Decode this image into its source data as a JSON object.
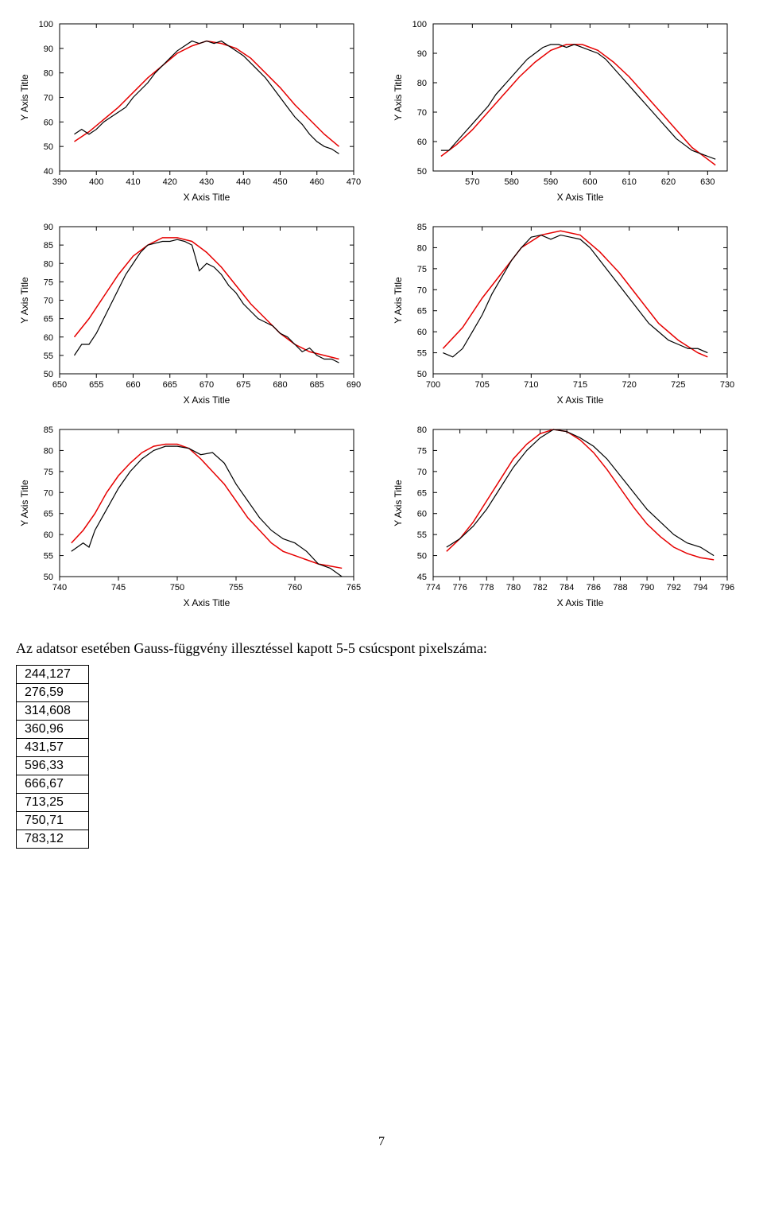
{
  "global": {
    "axis_title_x": "X Axis Title",
    "axis_title_y": "Y Axis Title",
    "data_color": "#000000",
    "fit_color": "#e60000",
    "background_color": "#ffffff",
    "axis_color": "#000000",
    "tick_fontsize": 11,
    "axis_title_fontsize": 12
  },
  "charts": [
    {
      "name": "chart-1",
      "xlim": [
        390,
        470
      ],
      "xtick_step": 10,
      "ylim": [
        40,
        100
      ],
      "ytick_step": 10,
      "data_points": [
        [
          394,
          55
        ],
        [
          396,
          57
        ],
        [
          398,
          55
        ],
        [
          400,
          57
        ],
        [
          402,
          60
        ],
        [
          404,
          62
        ],
        [
          406,
          64
        ],
        [
          408,
          66
        ],
        [
          410,
          70
        ],
        [
          412,
          73
        ],
        [
          414,
          76
        ],
        [
          416,
          80
        ],
        [
          418,
          83
        ],
        [
          420,
          86
        ],
        [
          422,
          89
        ],
        [
          424,
          91
        ],
        [
          426,
          93
        ],
        [
          428,
          92
        ],
        [
          430,
          93
        ],
        [
          432,
          92
        ],
        [
          434,
          93
        ],
        [
          436,
          91
        ],
        [
          438,
          89
        ],
        [
          440,
          87
        ],
        [
          442,
          84
        ],
        [
          444,
          81
        ],
        [
          446,
          78
        ],
        [
          448,
          74
        ],
        [
          450,
          70
        ],
        [
          452,
          66
        ],
        [
          454,
          62
        ],
        [
          456,
          59
        ],
        [
          458,
          55
        ],
        [
          460,
          52
        ],
        [
          462,
          50
        ],
        [
          464,
          49
        ],
        [
          466,
          47
        ]
      ],
      "fit_points": [
        [
          394,
          52
        ],
        [
          398,
          56
        ],
        [
          402,
          61
        ],
        [
          406,
          66
        ],
        [
          410,
          72
        ],
        [
          414,
          78
        ],
        [
          418,
          83
        ],
        [
          422,
          88
        ],
        [
          426,
          91
        ],
        [
          430,
          93
        ],
        [
          434,
          92
        ],
        [
          438,
          90
        ],
        [
          442,
          86
        ],
        [
          446,
          80
        ],
        [
          450,
          74
        ],
        [
          454,
          67
        ],
        [
          458,
          61
        ],
        [
          462,
          55
        ],
        [
          466,
          50
        ]
      ]
    },
    {
      "name": "chart-2",
      "xlim": [
        560,
        635
      ],
      "xtick_step": 10,
      "xtick_start": 570,
      "ylim": [
        50,
        100
      ],
      "ytick_step": 10,
      "data_points": [
        [
          562,
          57
        ],
        [
          564,
          57
        ],
        [
          566,
          60
        ],
        [
          568,
          63
        ],
        [
          570,
          66
        ],
        [
          572,
          69
        ],
        [
          574,
          72
        ],
        [
          576,
          76
        ],
        [
          578,
          79
        ],
        [
          580,
          82
        ],
        [
          582,
          85
        ],
        [
          584,
          88
        ],
        [
          586,
          90
        ],
        [
          588,
          92
        ],
        [
          590,
          93
        ],
        [
          592,
          93
        ],
        [
          594,
          92
        ],
        [
          596,
          93
        ],
        [
          598,
          92
        ],
        [
          600,
          91
        ],
        [
          602,
          90
        ],
        [
          604,
          88
        ],
        [
          606,
          85
        ],
        [
          608,
          82
        ],
        [
          610,
          79
        ],
        [
          612,
          76
        ],
        [
          614,
          73
        ],
        [
          616,
          70
        ],
        [
          618,
          67
        ],
        [
          620,
          64
        ],
        [
          622,
          61
        ],
        [
          624,
          59
        ],
        [
          626,
          57
        ],
        [
          628,
          56
        ],
        [
          630,
          55
        ],
        [
          632,
          54
        ]
      ],
      "fit_points": [
        [
          562,
          55
        ],
        [
          566,
          59
        ],
        [
          570,
          64
        ],
        [
          574,
          70
        ],
        [
          578,
          76
        ],
        [
          582,
          82
        ],
        [
          586,
          87
        ],
        [
          590,
          91
        ],
        [
          594,
          93
        ],
        [
          598,
          93
        ],
        [
          602,
          91
        ],
        [
          606,
          87
        ],
        [
          610,
          82
        ],
        [
          614,
          76
        ],
        [
          618,
          70
        ],
        [
          622,
          64
        ],
        [
          626,
          58
        ],
        [
          630,
          54
        ],
        [
          632,
          52
        ]
      ]
    },
    {
      "name": "chart-3",
      "xlim": [
        650,
        690
      ],
      "xtick_step": 5,
      "ylim": [
        50,
        90
      ],
      "ytick_step": 5,
      "data_points": [
        [
          652,
          55
        ],
        [
          653,
          58
        ],
        [
          654,
          58
        ],
        [
          655,
          61
        ],
        [
          656,
          65
        ],
        [
          657,
          69
        ],
        [
          658,
          73
        ],
        [
          659,
          77
        ],
        [
          660,
          80
        ],
        [
          661,
          83
        ],
        [
          662,
          85
        ],
        [
          663,
          85.5
        ],
        [
          664,
          86
        ],
        [
          665,
          86
        ],
        [
          666,
          86.5
        ],
        [
          667,
          86
        ],
        [
          668,
          85
        ],
        [
          669,
          78
        ],
        [
          670,
          80
        ],
        [
          671,
          79
        ],
        [
          672,
          77
        ],
        [
          673,
          74
        ],
        [
          674,
          72
        ],
        [
          675,
          69
        ],
        [
          676,
          67
        ],
        [
          677,
          65
        ],
        [
          678,
          64
        ],
        [
          679,
          63
        ],
        [
          680,
          61
        ],
        [
          681,
          60
        ],
        [
          682,
          58
        ],
        [
          683,
          56
        ],
        [
          684,
          57
        ],
        [
          685,
          55
        ],
        [
          686,
          54
        ],
        [
          687,
          54
        ],
        [
          688,
          53
        ]
      ],
      "fit_points": [
        [
          652,
          60
        ],
        [
          654,
          65
        ],
        [
          656,
          71
        ],
        [
          658,
          77
        ],
        [
          660,
          82
        ],
        [
          662,
          85
        ],
        [
          664,
          87
        ],
        [
          666,
          87
        ],
        [
          668,
          86
        ],
        [
          670,
          83
        ],
        [
          672,
          79
        ],
        [
          674,
          74
        ],
        [
          676,
          69
        ],
        [
          678,
          65
        ],
        [
          680,
          61
        ],
        [
          682,
          58
        ],
        [
          684,
          56
        ],
        [
          686,
          55
        ],
        [
          688,
          54
        ]
      ]
    },
    {
      "name": "chart-4",
      "xlim": [
        700,
        730
      ],
      "xtick_step": 5,
      "ylim": [
        50,
        85
      ],
      "ytick_step": 5,
      "data_points": [
        [
          701,
          55
        ],
        [
          702,
          54
        ],
        [
          703,
          56
        ],
        [
          704,
          60
        ],
        [
          705,
          64
        ],
        [
          706,
          69
        ],
        [
          707,
          73
        ],
        [
          708,
          77
        ],
        [
          709,
          80
        ],
        [
          710,
          82.5
        ],
        [
          711,
          83
        ],
        [
          712,
          82
        ],
        [
          713,
          83
        ],
        [
          714,
          82.5
        ],
        [
          715,
          82
        ],
        [
          716,
          80
        ],
        [
          717,
          77
        ],
        [
          718,
          74
        ],
        [
          719,
          71
        ],
        [
          720,
          68
        ],
        [
          721,
          65
        ],
        [
          722,
          62
        ],
        [
          723,
          60
        ],
        [
          724,
          58
        ],
        [
          725,
          57
        ],
        [
          726,
          56
        ],
        [
          727,
          56
        ],
        [
          728,
          55
        ]
      ],
      "fit_points": [
        [
          701,
          56
        ],
        [
          703,
          61
        ],
        [
          705,
          68
        ],
        [
          707,
          74
        ],
        [
          709,
          80
        ],
        [
          711,
          83
        ],
        [
          713,
          84
        ],
        [
          715,
          83
        ],
        [
          717,
          79
        ],
        [
          719,
          74
        ],
        [
          721,
          68
        ],
        [
          723,
          62
        ],
        [
          725,
          58
        ],
        [
          727,
          55
        ],
        [
          728,
          54
        ]
      ]
    },
    {
      "name": "chart-5",
      "xlim": [
        740,
        765
      ],
      "xtick_step": 5,
      "ylim": [
        50,
        85
      ],
      "ytick_step": 5,
      "data_points": [
        [
          741,
          56
        ],
        [
          742,
          58
        ],
        [
          742.5,
          57
        ],
        [
          743,
          61
        ],
        [
          744,
          66
        ],
        [
          745,
          71
        ],
        [
          746,
          75
        ],
        [
          747,
          78
        ],
        [
          748,
          80
        ],
        [
          749,
          81
        ],
        [
          750,
          81
        ],
        [
          751,
          80.5
        ],
        [
          752,
          79
        ],
        [
          753,
          79.5
        ],
        [
          754,
          77
        ],
        [
          755,
          72
        ],
        [
          756,
          68
        ],
        [
          757,
          64
        ],
        [
          758,
          61
        ],
        [
          759,
          59
        ],
        [
          760,
          58
        ],
        [
          761,
          56
        ],
        [
          762,
          53
        ],
        [
          763,
          52
        ],
        [
          764,
          50
        ]
      ],
      "fit_points": [
        [
          741,
          58
        ],
        [
          742,
          61
        ],
        [
          743,
          65
        ],
        [
          744,
          70
        ],
        [
          745,
          74
        ],
        [
          746,
          77
        ],
        [
          747,
          79.5
        ],
        [
          748,
          81
        ],
        [
          749,
          81.5
        ],
        [
          750,
          81.5
        ],
        [
          751,
          80.5
        ],
        [
          752,
          78
        ],
        [
          753,
          75
        ],
        [
          754,
          72
        ],
        [
          755,
          68
        ],
        [
          756,
          64
        ],
        [
          757,
          61
        ],
        [
          758,
          58
        ],
        [
          759,
          56
        ],
        [
          760,
          55
        ],
        [
          761,
          54
        ],
        [
          762,
          53
        ],
        [
          763,
          52.5
        ],
        [
          764,
          52
        ]
      ]
    },
    {
      "name": "chart-6",
      "xlim": [
        774,
        796
      ],
      "xtick_step": 2,
      "ylim": [
        45,
        80
      ],
      "ytick_step": 5,
      "data_points": [
        [
          775,
          52
        ],
        [
          776,
          54
        ],
        [
          777,
          57
        ],
        [
          778,
          61
        ],
        [
          779,
          66
        ],
        [
          780,
          71
        ],
        [
          781,
          75
        ],
        [
          782,
          78
        ],
        [
          783,
          80
        ],
        [
          784,
          79.5
        ],
        [
          785,
          78
        ],
        [
          786,
          76
        ],
        [
          787,
          73
        ],
        [
          788,
          69
        ],
        [
          789,
          65
        ],
        [
          790,
          61
        ],
        [
          791,
          58
        ],
        [
          792,
          55
        ],
        [
          793,
          53
        ],
        [
          794,
          52
        ],
        [
          795,
          50
        ]
      ],
      "fit_points": [
        [
          775,
          51
        ],
        [
          776,
          54
        ],
        [
          777,
          58
        ],
        [
          778,
          63
        ],
        [
          779,
          68
        ],
        [
          780,
          73
        ],
        [
          781,
          76.5
        ],
        [
          782,
          79
        ],
        [
          783,
          80
        ],
        [
          784,
          79.5
        ],
        [
          785,
          77.5
        ],
        [
          786,
          74.5
        ],
        [
          787,
          70.5
        ],
        [
          788,
          66
        ],
        [
          789,
          61.5
        ],
        [
          790,
          57.5
        ],
        [
          791,
          54.5
        ],
        [
          792,
          52
        ],
        [
          793,
          50.5
        ],
        [
          794,
          49.5
        ],
        [
          795,
          49
        ]
      ]
    }
  ],
  "caption": "Az adatsor esetében Gauss-függvény illesztéssel kapott 5-5 csúcspont pixelszáma:",
  "table_rows": [
    "244,127",
    "276,59",
    "314,608",
    "360,96",
    "431,57",
    "596,33",
    "666,67",
    "713,25",
    "750,71",
    "783,12"
  ],
  "page_number": "7"
}
